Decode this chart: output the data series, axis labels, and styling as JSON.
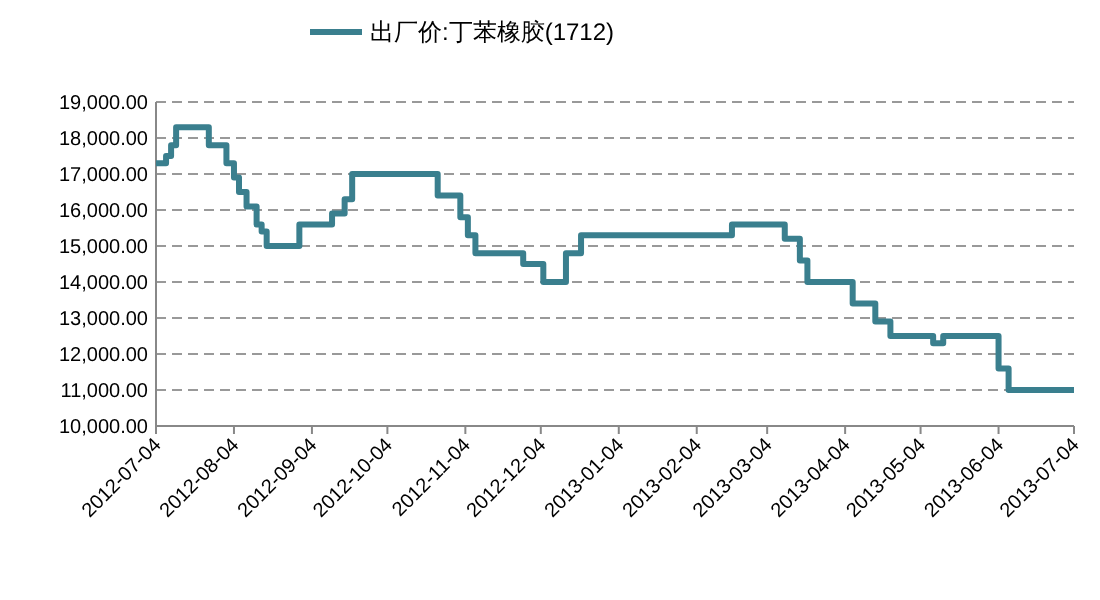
{
  "chart_data": {
    "type": "step",
    "series": [
      {
        "name": "出厂价:丁苯橡胶(1712)",
        "color": "#3a7f8e",
        "x": [
          "2012-07-04",
          "2012-07-08",
          "2012-07-10",
          "2012-07-12",
          "2012-07-25",
          "2012-08-01",
          "2012-08-04",
          "2012-08-06",
          "2012-08-09",
          "2012-08-13",
          "2012-08-15",
          "2012-08-17",
          "2012-08-30",
          "2012-09-12",
          "2012-09-17",
          "2012-09-20",
          "2012-10-24",
          "2012-11-02",
          "2012-11-05",
          "2012-11-08",
          "2012-11-27",
          "2012-12-05",
          "2012-12-14",
          "2012-12-20",
          "2013-02-18",
          "2013-03-11",
          "2013-03-17",
          "2013-03-20",
          "2013-04-07",
          "2013-04-16",
          "2013-04-22",
          "2013-05-09",
          "2013-05-13",
          "2013-06-04",
          "2013-06-08",
          "2013-07-04"
        ],
        "values": [
          17300,
          17500,
          17800,
          18300,
          17800,
          17300,
          16900,
          16500,
          16100,
          15600,
          15400,
          15000,
          15600,
          15900,
          16300,
          17000,
          16400,
          15800,
          15300,
          14800,
          14500,
          14000,
          14800,
          15300,
          15600,
          15200,
          14600,
          14000,
          13400,
          12900,
          12500,
          12300,
          12500,
          11600,
          11000,
          11000
        ]
      }
    ],
    "xlim": [
      "2012-07-04",
      "2013-07-04"
    ],
    "xticks": [
      "2012-07-04",
      "2012-08-04",
      "2012-09-04",
      "2012-10-04",
      "2012-11-04",
      "2012-12-04",
      "2013-01-04",
      "2013-02-04",
      "2013-03-04",
      "2013-04-04",
      "2013-05-04",
      "2013-06-04",
      "2013-07-04"
    ],
    "ylim": [
      10000,
      19000
    ],
    "yticks": [
      {
        "value": 10000,
        "label": "10,000.00"
      },
      {
        "value": 11000,
        "label": "11,000.00"
      },
      {
        "value": 12000,
        "label": "12,000.00"
      },
      {
        "value": 13000,
        "label": "13,000.00"
      },
      {
        "value": 14000,
        "label": "14,000.00"
      },
      {
        "value": 15000,
        "label": "15,000.00"
      },
      {
        "value": 16000,
        "label": "16,000.00"
      },
      {
        "value": 17000,
        "label": "17,000.00"
      },
      {
        "value": 18000,
        "label": "18,000.00"
      },
      {
        "value": 19000,
        "label": "19,000.00"
      }
    ],
    "grid": "y",
    "legend": "top"
  }
}
